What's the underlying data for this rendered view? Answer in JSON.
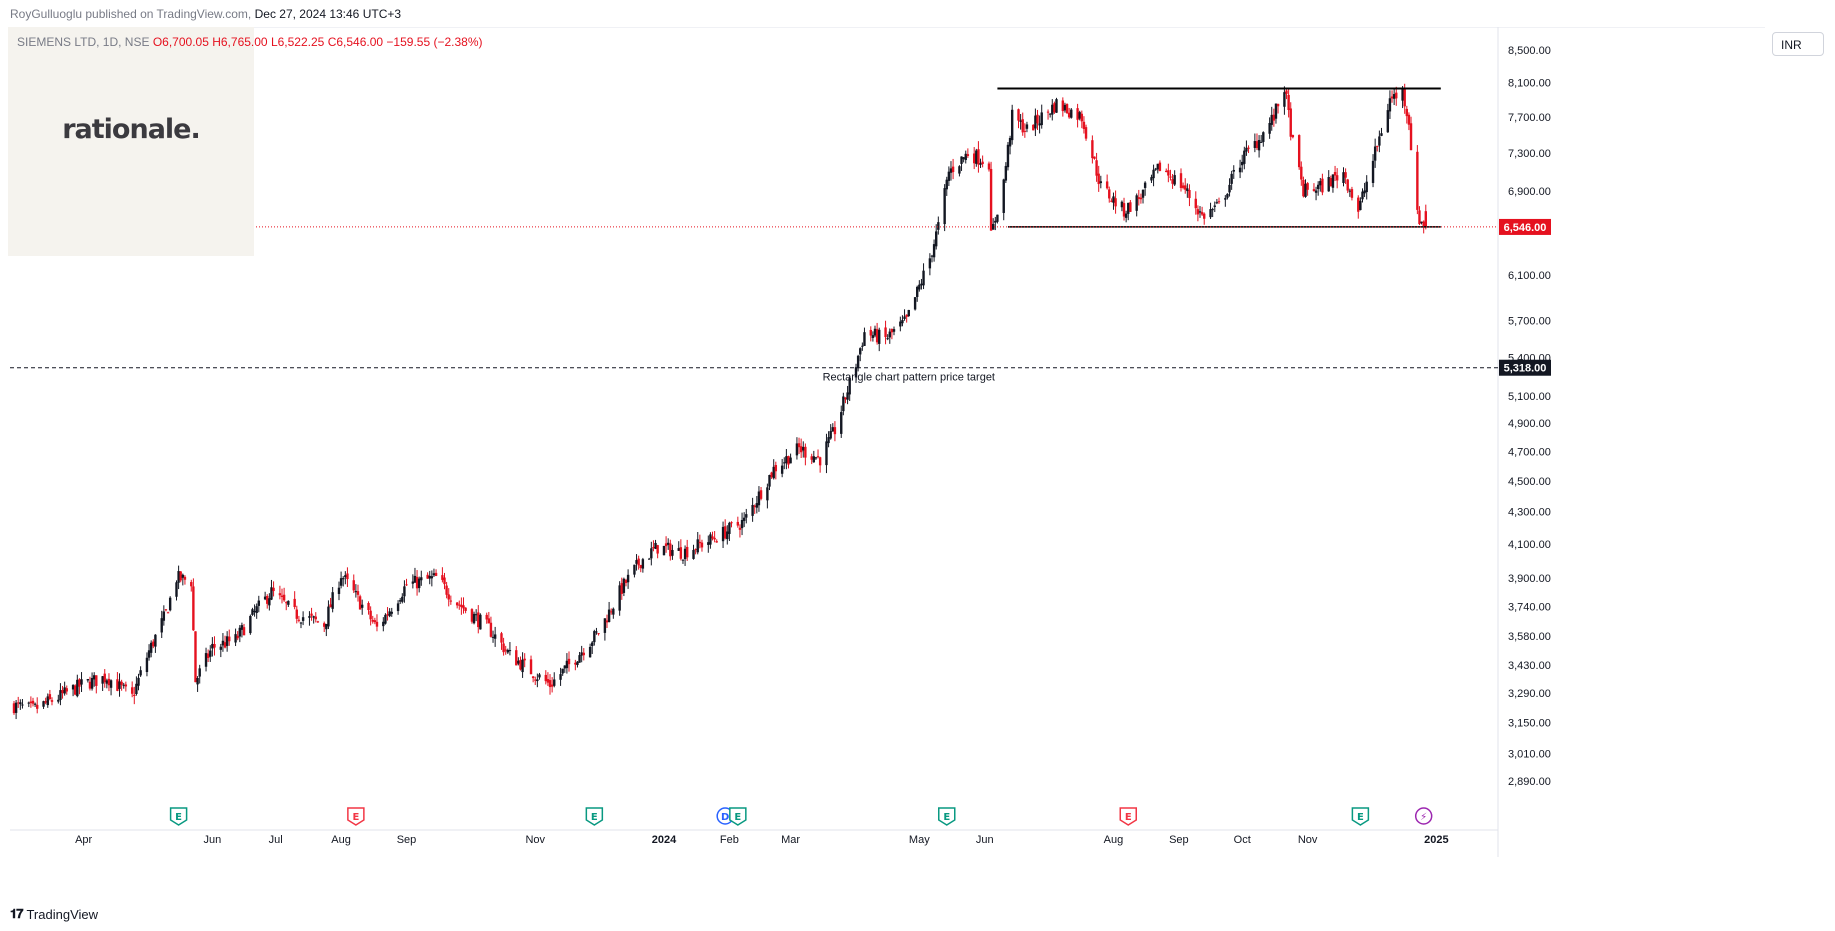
{
  "header": {
    "publisher": "RoyGulluoglu published on TradingView.com,",
    "date": "Dec 27, 2024 13:46 UTC+3"
  },
  "symbol_line": {
    "symbol": "SIEMENS LTD, 1D, NSE",
    "open": "O6,700.05",
    "high": "H6,765.00",
    "low": "L6,522.25",
    "close": "C6,546.00",
    "change": "−159.55 (−2.38%)"
  },
  "logo": {
    "text": "rationale."
  },
  "currency_button": {
    "label": "INR"
  },
  "footer": {
    "brand": "TradingView"
  },
  "colors": {
    "up": "#131722",
    "down": "#e5111f",
    "last_price": "#e5111f",
    "target": "#131722"
  },
  "chart_data": {
    "type": "candlestick",
    "title": "SIEMENS LTD, 1D, NSE",
    "price_scale": "log",
    "ylim": [
      2810,
      8600
    ],
    "y_ticks": [
      "8,500.00",
      "8,100.00",
      "7,700.00",
      "7,300.00",
      "6,900.00",
      "6,100.00",
      "5,700.00",
      "5,400.00",
      "5,100.00",
      "4,900.00",
      "4,700.00",
      "4,500.00",
      "4,300.00",
      "4,100.00",
      "3,900.00",
      "3,740.00",
      "3,580.00",
      "3,430.00",
      "3,290.00",
      "3,150.00",
      "3,010.00",
      "2,890.00"
    ],
    "x_labels": [
      {
        "label": "Apr",
        "date": "2023-04-01"
      },
      {
        "label": "Jun",
        "date": "2023-06-01"
      },
      {
        "label": "Jul",
        "date": "2023-07-01"
      },
      {
        "label": "Aug",
        "date": "2023-08-01"
      },
      {
        "label": "Sep",
        "date": "2023-09-01"
      },
      {
        "label": "Nov",
        "date": "2023-11-01"
      },
      {
        "label": "2024",
        "date": "2024-01-01"
      },
      {
        "label": "Feb",
        "date": "2024-02-01"
      },
      {
        "label": "Mar",
        "date": "2024-03-01"
      },
      {
        "label": "May",
        "date": "2024-05-01"
      },
      {
        "label": "Jun",
        "date": "2024-06-01"
      },
      {
        "label": "Aug",
        "date": "2024-08-01"
      },
      {
        "label": "Sep",
        "date": "2024-09-01"
      },
      {
        "label": "Oct",
        "date": "2024-10-01"
      },
      {
        "label": "Nov",
        "date": "2024-11-01"
      },
      {
        "label": "2025",
        "date": "2025-01-01"
      }
    ],
    "series": [
      {
        "name": "SIEMENS LTD",
        "style": "candles",
        "close": [
          {
            "date": "2023-02-27",
            "value": 3230
          },
          {
            "date": "2023-03-08",
            "value": 3210
          },
          {
            "date": "2023-03-20",
            "value": 3270
          },
          {
            "date": "2023-03-31",
            "value": 3330
          },
          {
            "date": "2023-04-12",
            "value": 3370
          },
          {
            "date": "2023-04-24",
            "value": 3270
          },
          {
            "date": "2023-05-02",
            "value": 3500
          },
          {
            "date": "2023-05-10",
            "value": 3700
          },
          {
            "date": "2023-05-15",
            "value": 3900
          },
          {
            "date": "2023-05-22",
            "value": 3880
          },
          {
            "date": "2023-05-24",
            "value": 3350
          },
          {
            "date": "2023-06-01",
            "value": 3520
          },
          {
            "date": "2023-06-12",
            "value": 3560
          },
          {
            "date": "2023-06-22",
            "value": 3720
          },
          {
            "date": "2023-06-29",
            "value": 3820
          },
          {
            "date": "2023-07-10",
            "value": 3700
          },
          {
            "date": "2023-07-24",
            "value": 3640
          },
          {
            "date": "2023-08-01",
            "value": 3920
          },
          {
            "date": "2023-08-10",
            "value": 3760
          },
          {
            "date": "2023-08-18",
            "value": 3620
          },
          {
            "date": "2023-09-01",
            "value": 3860
          },
          {
            "date": "2023-09-15",
            "value": 3900
          },
          {
            "date": "2023-09-25",
            "value": 3760
          },
          {
            "date": "2023-10-10",
            "value": 3620
          },
          {
            "date": "2023-10-20",
            "value": 3480
          },
          {
            "date": "2023-10-30",
            "value": 3400
          },
          {
            "date": "2023-11-08",
            "value": 3330
          },
          {
            "date": "2023-11-17",
            "value": 3430
          },
          {
            "date": "2023-12-01",
            "value": 3600
          },
          {
            "date": "2023-12-12",
            "value": 3840
          },
          {
            "date": "2023-12-21",
            "value": 4000
          },
          {
            "date": "2023-12-29",
            "value": 4080
          },
          {
            "date": "2024-01-10",
            "value": 4050
          },
          {
            "date": "2024-01-24",
            "value": 4130
          },
          {
            "date": "2024-02-08",
            "value": 4240
          },
          {
            "date": "2024-02-22",
            "value": 4580
          },
          {
            "date": "2024-03-05",
            "value": 4720
          },
          {
            "date": "2024-03-15",
            "value": 4650
          },
          {
            "date": "2024-03-22",
            "value": 4850
          },
          {
            "date": "2024-04-01",
            "value": 5350
          },
          {
            "date": "2024-04-05",
            "value": 5600
          },
          {
            "date": "2024-04-15",
            "value": 5550
          },
          {
            "date": "2024-04-25",
            "value": 5700
          },
          {
            "date": "2024-05-06",
            "value": 6250
          },
          {
            "date": "2024-05-10",
            "value": 6550
          },
          {
            "date": "2024-05-15",
            "value": 7100
          },
          {
            "date": "2024-05-24",
            "value": 7300
          },
          {
            "date": "2024-06-03",
            "value": 7200
          },
          {
            "date": "2024-06-04",
            "value": 6450
          },
          {
            "date": "2024-06-10",
            "value": 7000
          },
          {
            "date": "2024-06-14",
            "value": 7700
          },
          {
            "date": "2024-06-21",
            "value": 7550
          },
          {
            "date": "2024-07-05",
            "value": 7850
          },
          {
            "date": "2024-07-17",
            "value": 7700
          },
          {
            "date": "2024-07-26",
            "value": 6950
          },
          {
            "date": "2024-08-06",
            "value": 6700
          },
          {
            "date": "2024-08-14",
            "value": 6850
          },
          {
            "date": "2024-08-23",
            "value": 7150
          },
          {
            "date": "2024-09-03",
            "value": 6950
          },
          {
            "date": "2024-09-12",
            "value": 6650
          },
          {
            "date": "2024-09-20",
            "value": 6750
          },
          {
            "date": "2024-10-01",
            "value": 7250
          },
          {
            "date": "2024-10-09",
            "value": 7450
          },
          {
            "date": "2024-10-16",
            "value": 7700
          },
          {
            "date": "2024-10-21",
            "value": 8050
          },
          {
            "date": "2024-10-25",
            "value": 7400
          },
          {
            "date": "2024-10-30",
            "value": 6900
          },
          {
            "date": "2024-11-08",
            "value": 6950
          },
          {
            "date": "2024-11-18",
            "value": 7100
          },
          {
            "date": "2024-11-25",
            "value": 6700
          },
          {
            "date": "2024-12-03",
            "value": 7300
          },
          {
            "date": "2024-12-10",
            "value": 7900
          },
          {
            "date": "2024-12-16",
            "value": 8000
          },
          {
            "date": "2024-12-19",
            "value": 7650
          },
          {
            "date": "2024-12-23",
            "value": 6650
          },
          {
            "date": "2024-12-27",
            "value": 6546
          }
        ]
      }
    ],
    "annotations": {
      "last_price": {
        "value": 6546,
        "label": "6,546.00"
      },
      "price_target": {
        "value": 5318,
        "label": "5,318.00",
        "text": "Rectangle chart pattern price target"
      },
      "rectangle_top": {
        "value": 8030,
        "from": "2024-06-07",
        "to": "2024-12-27"
      },
      "rectangle_bottom": {
        "value": 6546,
        "from": "2024-06-12",
        "to": "2024-12-27"
      }
    },
    "event_markers": [
      {
        "type": "E",
        "date": "2023-05-16",
        "kind": "positive"
      },
      {
        "type": "E",
        "date": "2023-08-08",
        "kind": "negative"
      },
      {
        "type": "E",
        "date": "2023-11-29",
        "kind": "positive"
      },
      {
        "type": "D",
        "date": "2024-01-30",
        "kind": "dividend"
      },
      {
        "type": "E",
        "date": "2024-02-05",
        "kind": "positive"
      },
      {
        "type": "E",
        "date": "2024-05-14",
        "kind": "positive"
      },
      {
        "type": "E",
        "date": "2024-08-08",
        "kind": "negative"
      },
      {
        "type": "E",
        "date": "2024-11-26",
        "kind": "positive"
      },
      {
        "type": "⚡",
        "date": "2024-12-26",
        "kind": "upcoming"
      }
    ],
    "grid": false,
    "legend": "top-left"
  }
}
